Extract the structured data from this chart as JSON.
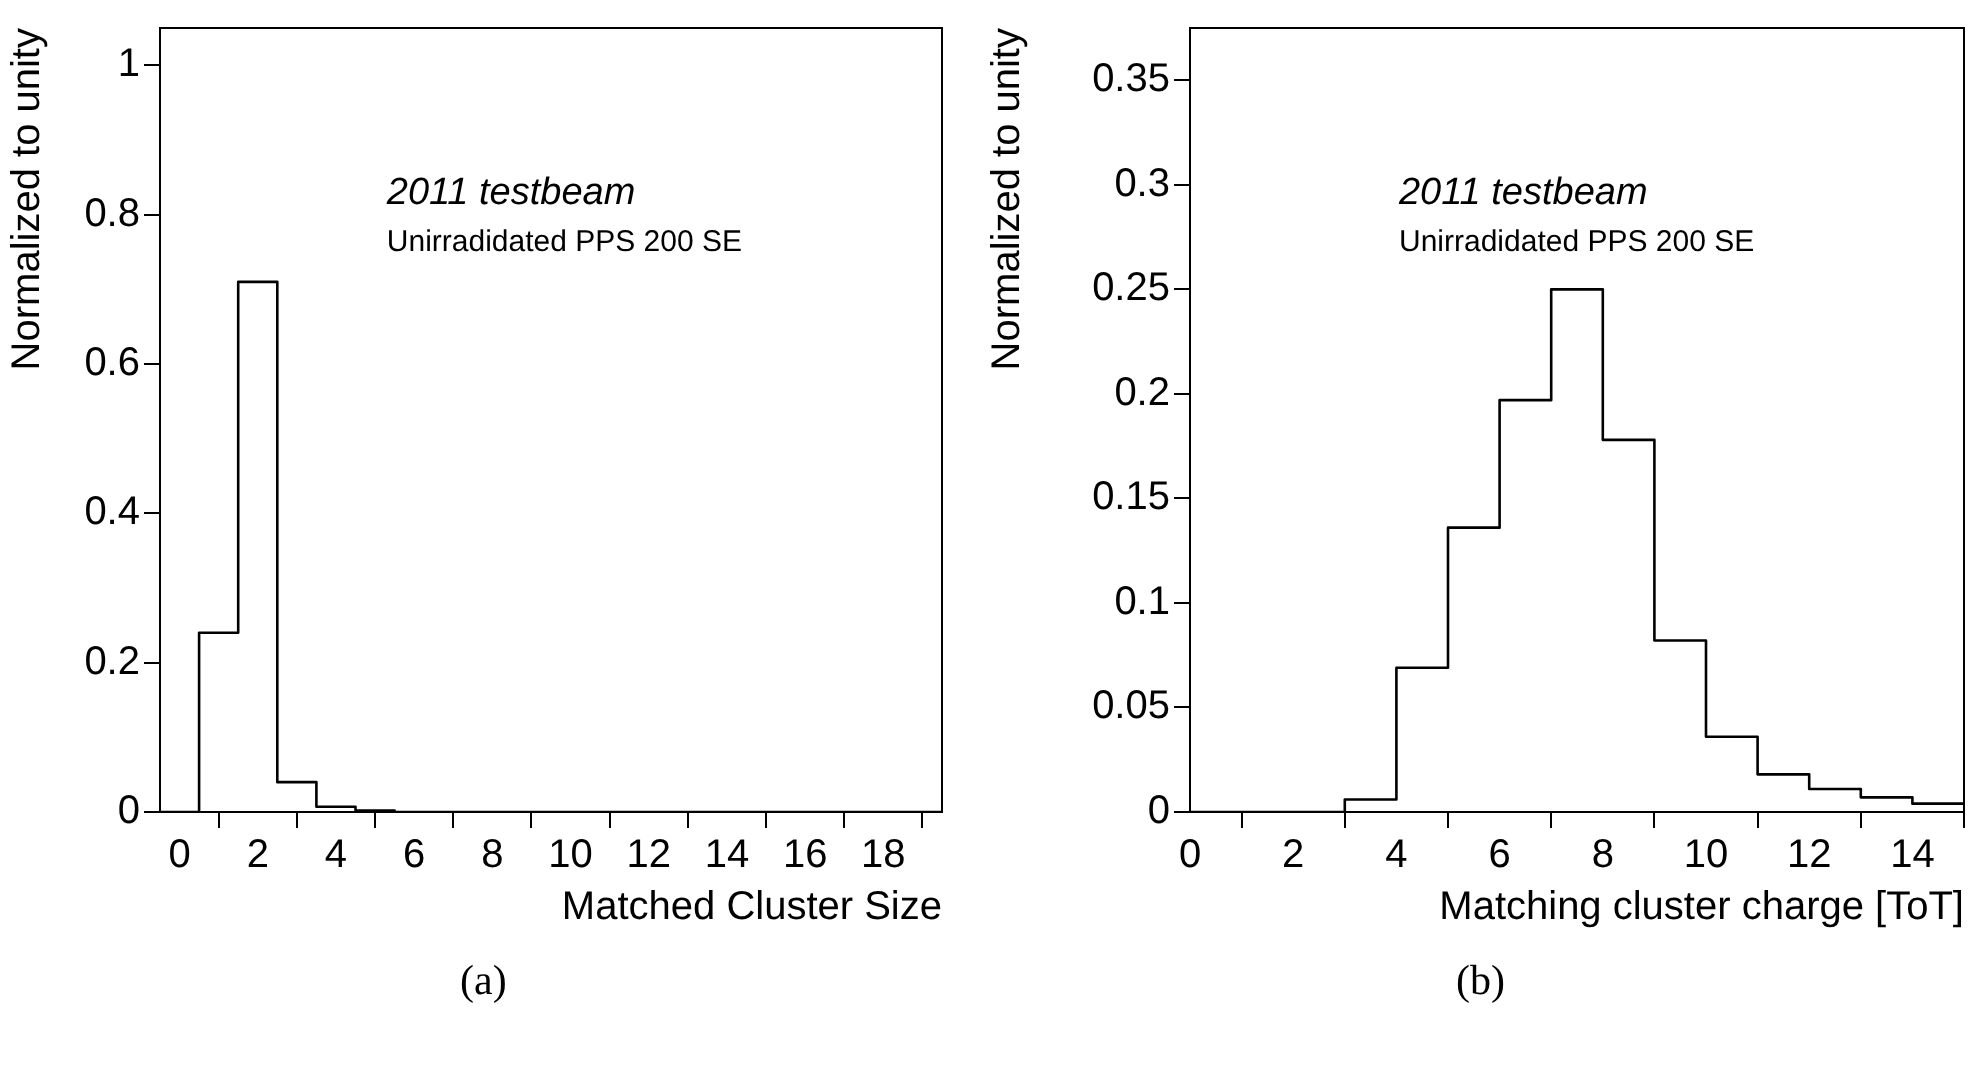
{
  "chart_data": [
    {
      "type": "histogram",
      "xlabel": "Matched Cluster Size",
      "ylabel": "Normalized to unity",
      "bins": [
        -0.5,
        0.5,
        1.5,
        2.5,
        3.5,
        4.5,
        5.5,
        6.5,
        7.5,
        8.5,
        9.5,
        10.5,
        11.5,
        12.5,
        13.5,
        14.5,
        15.5,
        16.5,
        17.5,
        18.5,
        19.5
      ],
      "values": [
        0,
        0.24,
        0.71,
        0.04,
        0.007,
        0.002,
        0,
        0,
        0,
        0,
        0,
        0,
        0,
        0,
        0,
        0,
        0,
        0,
        0,
        0
      ],
      "color": "#000000",
      "xlim": [
        -0.5,
        19.5
      ],
      "ylim": [
        0,
        1.05
      ],
      "xticks": [
        0,
        2,
        4,
        6,
        8,
        10,
        12,
        14,
        16,
        18
      ],
      "yticks": [
        0,
        0.2,
        0.4,
        0.6,
        0.8,
        1
      ],
      "grid": false,
      "legend": false,
      "annotations": [
        "2011 testbeam",
        "Unirradidated PPS 200 SE",
        "(a)"
      ]
    },
    {
      "type": "histogram",
      "xlabel": "Matching cluster charge [ToT]",
      "ylabel": "Normalized to unity",
      "bins": [
        0,
        1,
        2,
        3,
        4,
        5,
        6,
        7,
        8,
        9,
        10,
        11,
        12,
        13,
        14,
        15
      ],
      "values": [
        0,
        0,
        0,
        0.006,
        0.069,
        0.136,
        0.197,
        0.25,
        0.178,
        0.082,
        0.036,
        0.018,
        0.011,
        0.007,
        0.004
      ],
      "color": "#000000",
      "xlim": [
        0,
        15
      ],
      "ylim": [
        0,
        0.375
      ],
      "xticks": [
        0,
        2,
        4,
        6,
        8,
        10,
        12,
        14
      ],
      "yticks": [
        0,
        0.05,
        0.1,
        0.15,
        0.2,
        0.25,
        0.3,
        0.35
      ],
      "grid": false,
      "legend": false,
      "annotations": [
        "2011 testbeam",
        "Unirradidated PPS 200 SE",
        "(b)"
      ]
    }
  ]
}
